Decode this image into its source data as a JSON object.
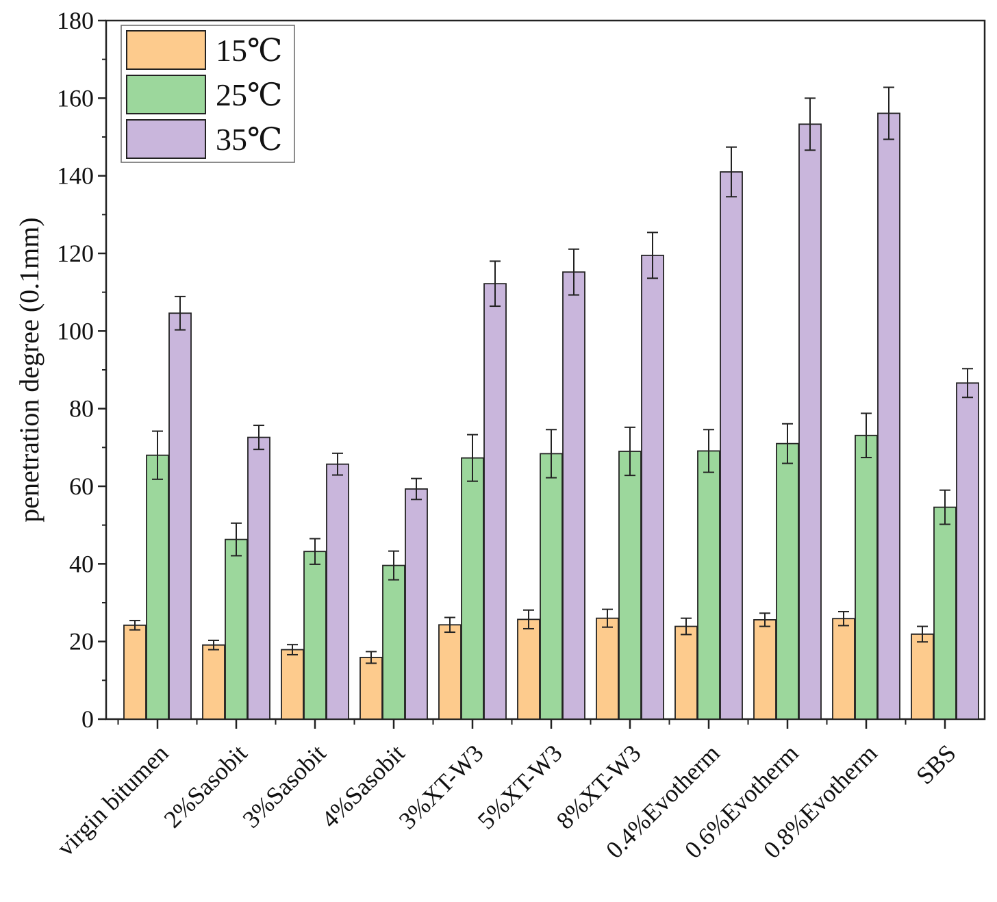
{
  "chart_data": {
    "type": "bar",
    "title": "",
    "xlabel": "",
    "ylabel": "penetration degree (0.1mm)",
    "ylim": [
      0,
      180
    ],
    "yticks": [
      0,
      20,
      40,
      60,
      80,
      100,
      120,
      140,
      160,
      180
    ],
    "grid": false,
    "legend_position": "top-left",
    "categories": [
      "virgin bitumen",
      "2%Sasobit",
      "3%Sasobit",
      "4%Sasobit",
      "3%XT-W3",
      "5%XT-W3",
      "8%XT-W3",
      "0.4%Evotherm",
      "0.6%Evotherm",
      "0.8%Evotherm",
      "SBS"
    ],
    "series": [
      {
        "name": "15℃",
        "color": "#FDCB8D",
        "values": [
          24.2,
          19.1,
          17.9,
          15.9,
          24.3,
          25.7,
          26.0,
          23.9,
          25.6,
          25.9,
          21.9
        ],
        "errors": [
          1.2,
          1.2,
          1.3,
          1.5,
          1.9,
          2.4,
          2.3,
          2.1,
          1.7,
          1.8,
          2.0
        ]
      },
      {
        "name": "25℃",
        "color": "#9CD79C",
        "values": [
          68.0,
          46.3,
          43.2,
          39.6,
          67.3,
          68.4,
          69.0,
          69.1,
          71.0,
          73.1,
          54.6
        ],
        "errors": [
          6.2,
          4.2,
          3.3,
          3.7,
          6.0,
          6.2,
          6.2,
          5.5,
          5.1,
          5.7,
          4.4
        ]
      },
      {
        "name": "35℃",
        "color": "#C9B6DC",
        "values": [
          104.6,
          72.6,
          65.7,
          59.3,
          112.2,
          115.2,
          119.5,
          141.0,
          153.3,
          156.1,
          86.6
        ],
        "errors": [
          4.3,
          3.1,
          2.8,
          2.7,
          5.8,
          5.9,
          5.9,
          6.4,
          6.7,
          6.7,
          3.7
        ]
      }
    ]
  }
}
